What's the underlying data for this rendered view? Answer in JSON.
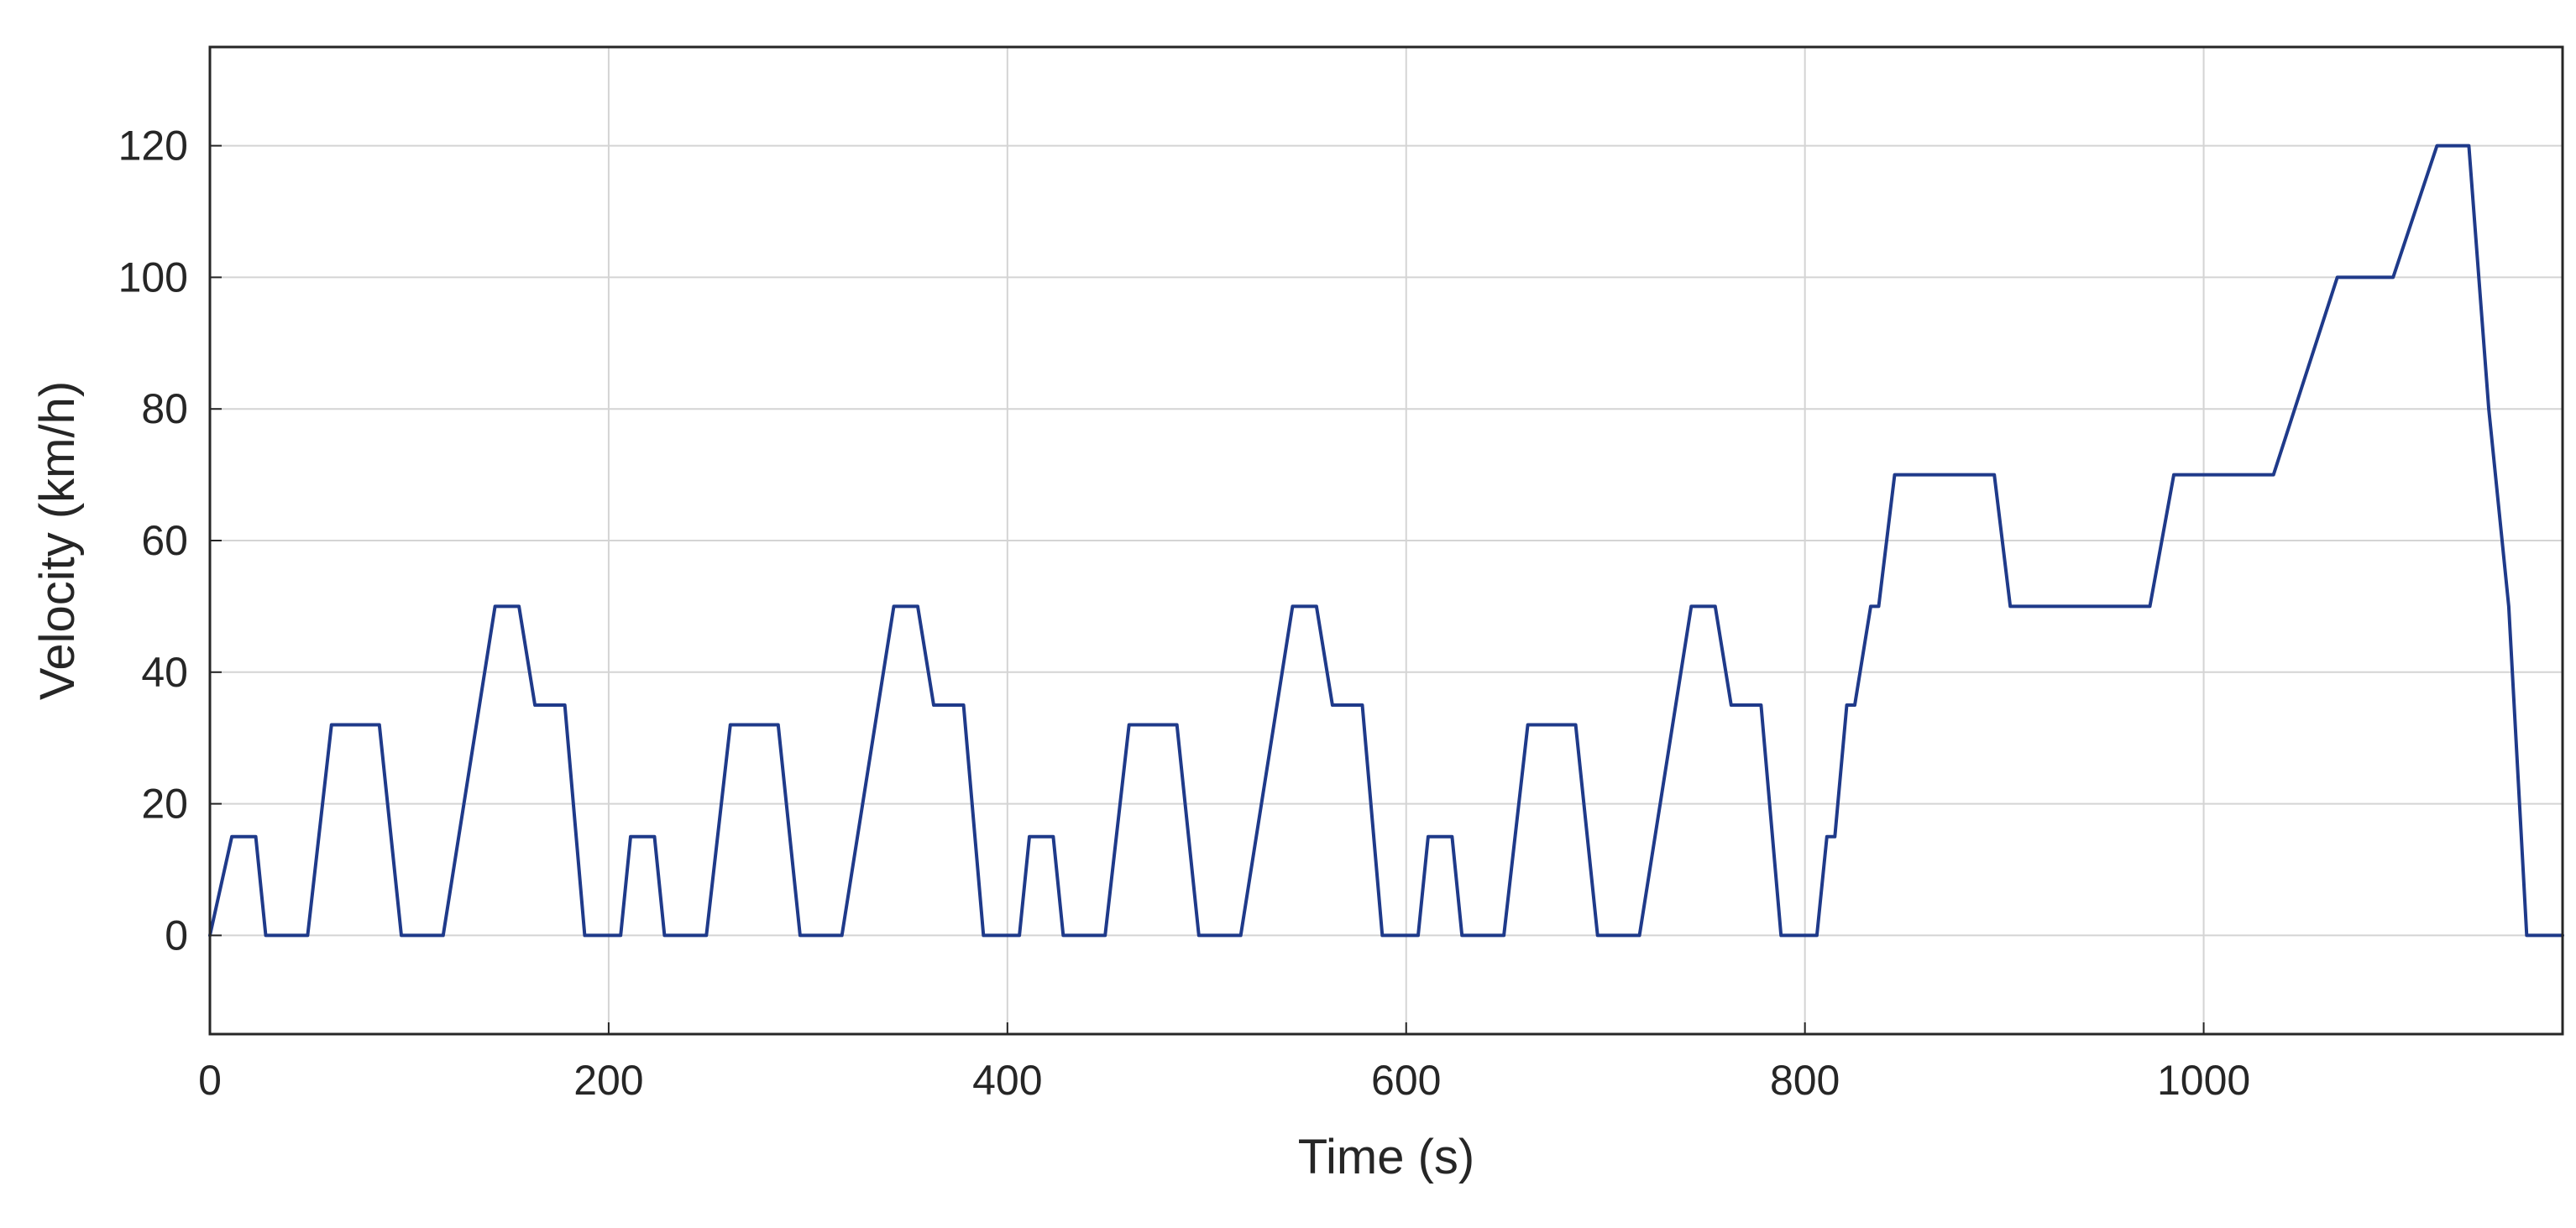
{
  "chart_data": {
    "type": "line",
    "title": "",
    "xlabel": "Time (s)",
    "ylabel": "Velocity (km/h)",
    "xlim": [
      0,
      1180
    ],
    "ylim": [
      -15,
      135
    ],
    "xticks": [
      0,
      200,
      400,
      600,
      800,
      1000
    ],
    "yticks": [
      0,
      20,
      40,
      60,
      80,
      100,
      120
    ],
    "xtick_labels": [
      "0",
      "200",
      "400",
      "600",
      "800",
      "1000"
    ],
    "ytick_labels": [
      "0",
      "20",
      "40",
      "60",
      "80",
      "100",
      "120"
    ],
    "grid": true,
    "legend": "none",
    "colors": {
      "line": "#1f3a8a",
      "grid": "#d4d4d4",
      "axis": "#262626"
    },
    "series": [
      {
        "x": [
          0,
          11,
          15,
          23,
          28,
          49,
          61,
          85,
          96,
          117,
          143,
          155,
          163,
          178,
          188,
          206,
          211,
          215,
          223,
          228,
          249,
          261,
          285,
          296,
          317,
          343,
          355,
          363,
          378,
          388,
          406,
          411,
          415,
          423,
          428,
          449,
          461,
          485,
          496,
          517,
          543,
          555,
          563,
          578,
          588,
          606,
          611,
          615,
          623,
          628,
          649,
          661,
          685,
          696,
          717,
          743,
          755,
          763,
          778,
          788,
          806,
          811,
          815,
          821,
          825,
          833,
          837,
          845,
          849,
          895,
          903,
          973,
          985,
          1035,
          1067,
          1095,
          1117,
          1127,
          1133,
          1143,
          1153,
          1162,
          1180
        ],
        "y": [
          0,
          15,
          15,
          15,
          0,
          0,
          32,
          32,
          0,
          0,
          50,
          50,
          35,
          35,
          0,
          0,
          15,
          15,
          15,
          0,
          0,
          32,
          32,
          0,
          0,
          50,
          50,
          35,
          35,
          0,
          0,
          15,
          15,
          15,
          0,
          0,
          32,
          32,
          0,
          0,
          50,
          50,
          35,
          35,
          0,
          0,
          15,
          15,
          15,
          0,
          0,
          32,
          32,
          0,
          0,
          50,
          50,
          35,
          35,
          0,
          0,
          15,
          15,
          35,
          35,
          50,
          50,
          70,
          70,
          70,
          50,
          50,
          70,
          70,
          100,
          100,
          120,
          120,
          120,
          80,
          50,
          0,
          0
        ]
      }
    ]
  }
}
